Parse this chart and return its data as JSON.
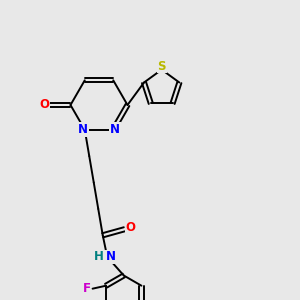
{
  "background_color": "#e8e8e8",
  "bond_color": "#000000",
  "atom_colors": {
    "N": "#0000ff",
    "O": "#ff0000",
    "S": "#b8b800",
    "F": "#cc00cc",
    "H": "#008080",
    "C": "#000000"
  },
  "font_size": 8.5,
  "lw": 1.4,
  "figsize": [
    3.0,
    3.0
  ],
  "dpi": 100
}
